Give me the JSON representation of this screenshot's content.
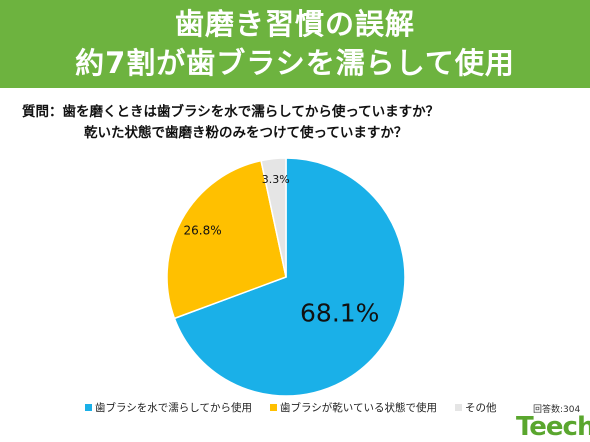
{
  "header": {
    "line1": "歯磨き習慣の誤解",
    "line2": "約7割が歯ブラシを濡らして使用",
    "bg_color": "#6db33f"
  },
  "question": {
    "line1": "質問：歯を磨くときは歯ブラシを水で濡らしてから使っていますか？",
    "line2": "乾いた状態で歯磨き粉のみをつけて使っていますか？"
  },
  "chart_data": {
    "type": "pie",
    "slices": [
      {
        "label": "歯ブラシを水で濡らしてから使用",
        "value": 68.1,
        "display": "68.1%",
        "color": "#1ab0e8"
      },
      {
        "label": "歯ブラシが乾いている状態で使用",
        "value": 26.8,
        "display": "26.8%",
        "color": "#ffc000"
      },
      {
        "label": "その他",
        "value": 3.3,
        "display": "3.3%",
        "color": "#e5e5e5"
      }
    ]
  },
  "footer": {
    "count": "回答数:304",
    "logo": "Teech"
  }
}
